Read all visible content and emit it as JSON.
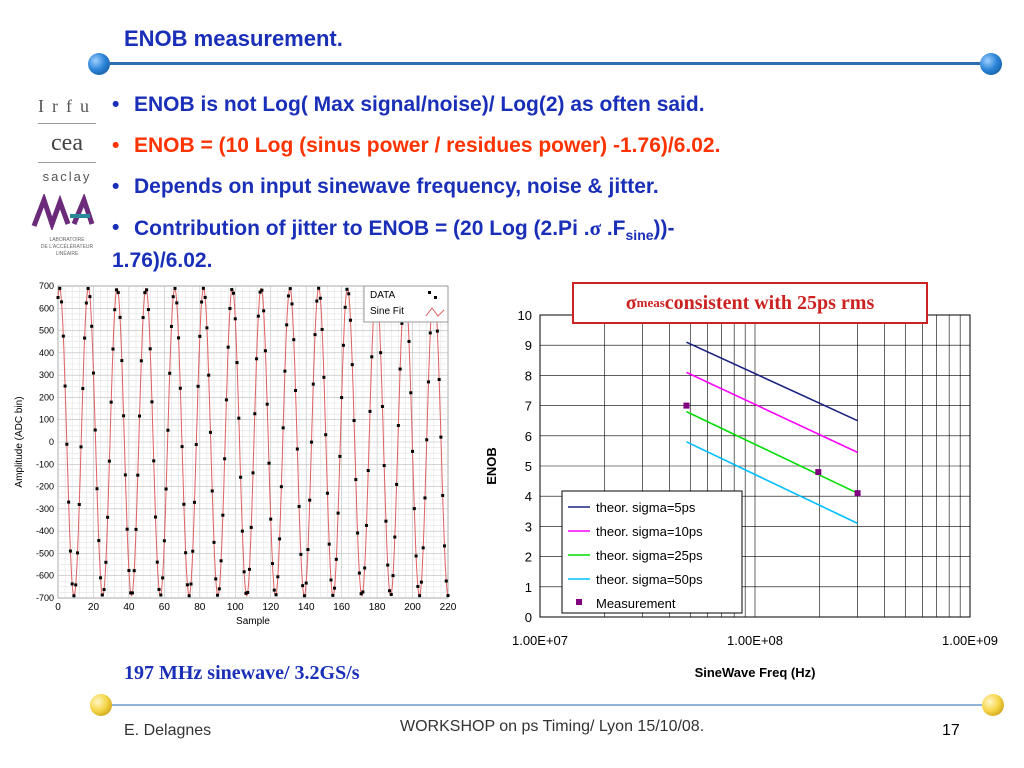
{
  "slide": {
    "title": "ENOB measurement.",
    "bullets": [
      {
        "text": "ENOB is not Log( Max signal/noise)/ Log(2) as often said."
      },
      {
        "text": "ENOB = (10 Log (sinus power / residues power) -1.76)/6.02."
      },
      {
        "text": "Depends on input sinewave frequency, noise & jitter."
      },
      {
        "line1_a": "Contribution of jitter to ENOB = (20 Log (2.Pi .",
        "sigma": "σ",
        "line1_b": " .F",
        "sub": "sine",
        "line1_c": "))-",
        "line2": "1.76)/6.02."
      }
    ],
    "bullet_mark": "•"
  },
  "logos": {
    "irfu": "Irfu",
    "cea": "cea",
    "saclay": "saclay",
    "lal_lines": [
      "LABORATOIRE",
      "DE L'ACCÉLÉRATEUR",
      "LINÉAIRE"
    ]
  },
  "highlight": {
    "symbol": "σ",
    "sub": "meas",
    "text": " consistent with 25ps rms"
  },
  "caption": "197 MHz sinewave/ 3.2GS/s",
  "footer": {
    "author": "E. Delagnes",
    "workshop": "WORKSHOP on ps Timing/ Lyon 15/10/08.",
    "page": "17"
  },
  "colors": {
    "title": "#1a2fb8",
    "red_bullet": "#ff3300",
    "rail": "#2a6fb5"
  },
  "chart_data": [
    {
      "type": "scatter",
      "title": "",
      "xlabel": "Sample",
      "ylabel": "Amplitude (ADC bin)",
      "xlim": [
        0,
        220
      ],
      "ylim": [
        -700,
        700
      ],
      "xticks": [
        0,
        20,
        40,
        60,
        80,
        100,
        120,
        140,
        160,
        180,
        200,
        220
      ],
      "yticks": [
        700,
        600,
        500,
        400,
        300,
        200,
        100,
        0,
        -100,
        -200,
        -300,
        -400,
        -500,
        -600,
        -700
      ],
      "legend": [
        "DATA",
        "Sine Fit"
      ],
      "legend_position": "top-right",
      "series": [
        {
          "name": "DATA",
          "fit": {
            "amplitude": 690,
            "samples_per_period": 16.24,
            "phase_deg": 70
          }
        },
        {
          "name": "Sine Fit",
          "fit": {
            "amplitude": 690,
            "samples_per_period": 16.24,
            "phase_deg": 70
          }
        }
      ]
    },
    {
      "type": "line",
      "title": "",
      "xlabel": "SineWave Freq (Hz)",
      "ylabel": "ENOB",
      "xscale": "log",
      "xlim": [
        10000000,
        1000000000
      ],
      "ylim": [
        0,
        10
      ],
      "xtick_labels": [
        "1.00E+07",
        "1.00E+08",
        "1.00E+09"
      ],
      "yticks": [
        0,
        1,
        2,
        3,
        4,
        5,
        6,
        7,
        8,
        9,
        10
      ],
      "grid": true,
      "legend_position": "bottom-left",
      "series": [
        {
          "name": "theor. sigma=5ps",
          "color": "#1a237e",
          "x": [
            48000000,
            300000000
          ],
          "y": [
            9.1,
            6.5
          ]
        },
        {
          "name": "theor. sigma=10ps",
          "color": "#ff00ff",
          "x": [
            48000000,
            300000000
          ],
          "y": [
            8.1,
            5.45
          ]
        },
        {
          "name": "theor. sigma=25ps",
          "color": "#00dd00",
          "x": [
            48000000,
            300000000
          ],
          "y": [
            6.8,
            4.1
          ]
        },
        {
          "name": "theor. sigma=50ps",
          "color": "#00bfff",
          "x": [
            48000000,
            300000000
          ],
          "y": [
            5.8,
            3.1
          ]
        },
        {
          "name": "Measurement",
          "color": "#800080",
          "marker": "square",
          "x": [
            48000000,
            197000000,
            300000000
          ],
          "y": [
            7.0,
            4.8,
            4.1
          ]
        }
      ]
    }
  ]
}
